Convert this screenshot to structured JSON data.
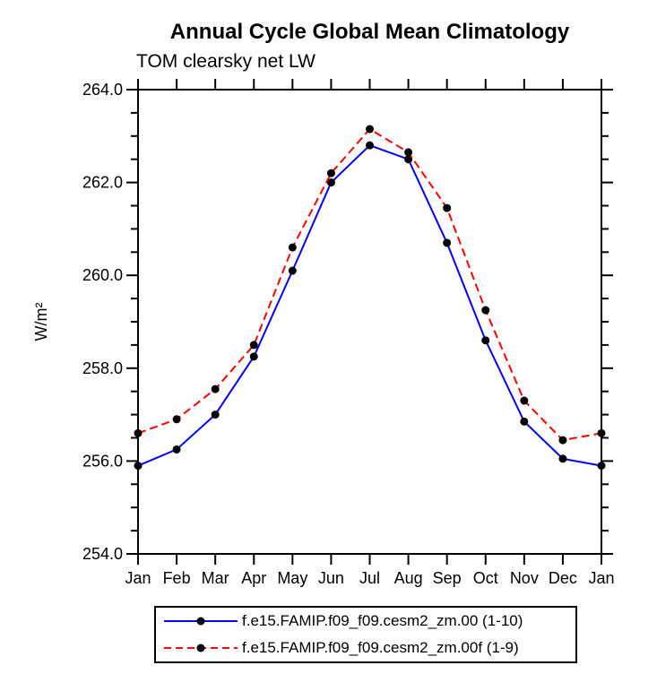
{
  "header": {
    "title": "Annual Cycle Global Mean Climatology",
    "subtitle": "TOM clearsky net LW"
  },
  "chart_data": {
    "type": "line",
    "title": "Annual Cycle Global Mean Climatology",
    "subtitle": "TOM clearsky net LW",
    "xlabel": "",
    "ylabel": "W/m²",
    "categories": [
      "Jan",
      "Feb",
      "Mar",
      "Apr",
      "May",
      "Jun",
      "Jul",
      "Aug",
      "Sep",
      "Oct",
      "Nov",
      "Dec",
      "Jan"
    ],
    "ylim": [
      254.0,
      264.0
    ],
    "yticks": [
      254.0,
      256.0,
      258.0,
      260.0,
      262.0,
      264.0
    ],
    "ytick_minor_interval": 0.5,
    "grid": false,
    "legend_position": "bottom",
    "axis_color": "#000000",
    "marker_color": "#000000",
    "series": [
      {
        "name": "f.e15.FAMIP.f09_f09.cesm2_zm.00 (1-10)",
        "color": "#0000ff",
        "style": "solid",
        "marker": "circle",
        "values": [
          255.9,
          256.25,
          257.0,
          258.25,
          260.1,
          262.0,
          262.8,
          262.5,
          260.7,
          258.6,
          256.85,
          256.05,
          255.9
        ]
      },
      {
        "name": "f.e15.FAMIP.f09_f09.cesm2_zm.00f (1-9)",
        "color": "#ff0000",
        "style": "dashed",
        "marker": "circle",
        "values": [
          256.6,
          256.9,
          257.55,
          258.5,
          260.6,
          262.2,
          263.15,
          262.65,
          261.45,
          259.25,
          257.3,
          256.45,
          256.6
        ]
      }
    ]
  }
}
